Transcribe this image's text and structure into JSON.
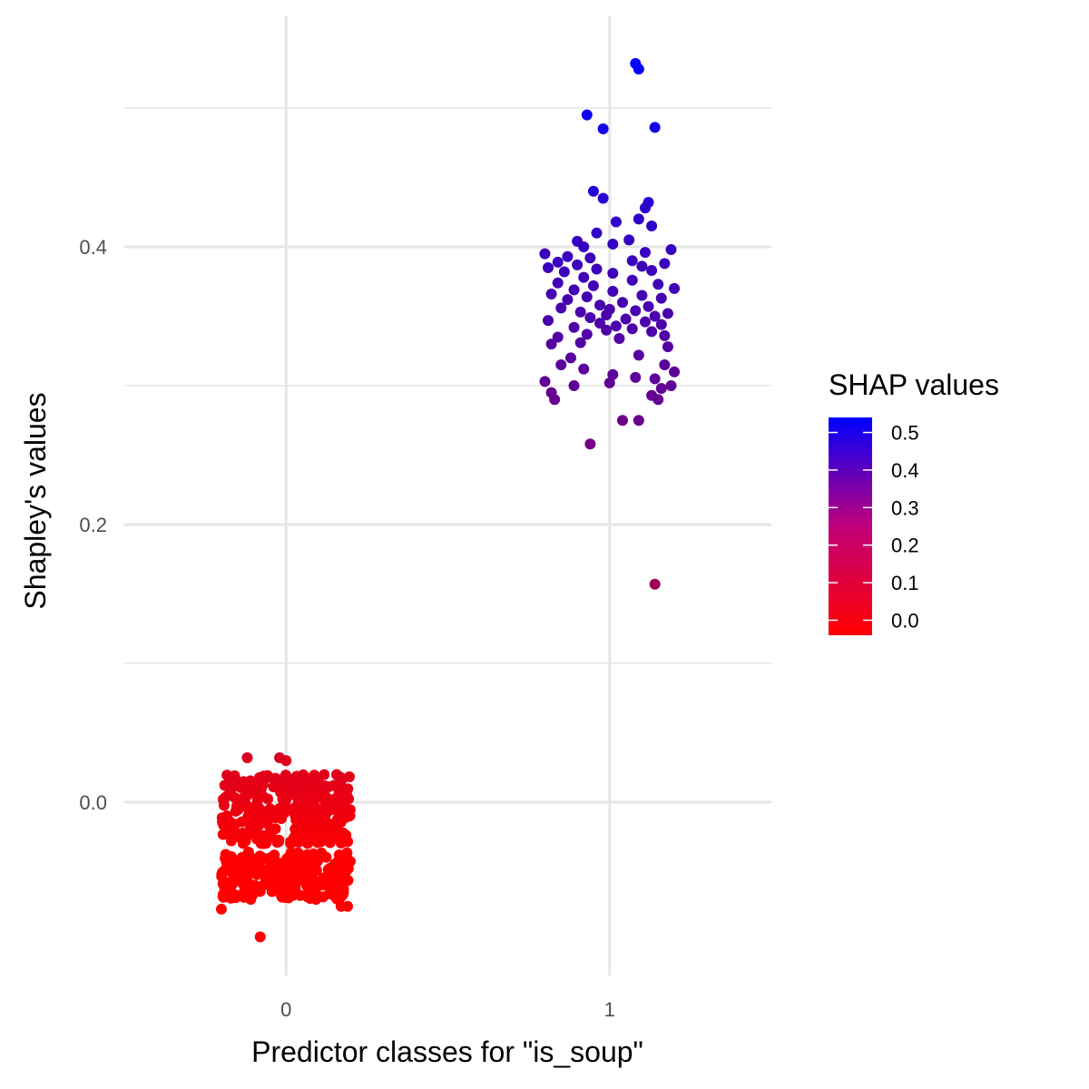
{
  "chart_data": {
    "type": "scatter",
    "xlabel": "Predictor classes for \"is_soup\"",
    "ylabel": "Shapley's values",
    "x_categories": [
      "0",
      "1"
    ],
    "x_tick_labels": [
      "0",
      "1"
    ],
    "y_tick_labels": [
      "0.0",
      "0.2",
      "0.4"
    ],
    "y_ticks": [
      0.0,
      0.2,
      0.4
    ],
    "y_minor_ticks": [
      -0.2,
      0.1,
      0.3,
      0.5
    ],
    "xlim": [
      -0.5,
      1.5
    ],
    "ylim": [
      -0.12,
      0.54
    ],
    "jitter_width": 0.2,
    "grid": true,
    "legend": {
      "title": "SHAP values",
      "placement": "right",
      "tick_labels": [
        "0.5",
        "0.4",
        "0.3",
        "0.2",
        "0.1",
        "0.0"
      ],
      "ticks": [
        0.5,
        0.4,
        0.3,
        0.2,
        0.1,
        0.0
      ],
      "range": [
        -0.04,
        0.54
      ],
      "low_color": "#ff0000",
      "high_color": "#0000ff"
    },
    "class0": {
      "count": 560,
      "main_cluster": {
        "min": -0.03,
        "max": 0.02
      },
      "lower_cluster": {
        "min": -0.07,
        "max": -0.035
      },
      "outliers": [
        {
          "x": -0.12,
          "y": 0.032
        },
        {
          "x": -0.02,
          "y": 0.032
        },
        {
          "x": -0.2,
          "y": -0.077
        },
        {
          "x": -0.08,
          "y": -0.097
        },
        {
          "x": 0.17,
          "y": -0.075
        },
        {
          "x": 0.19,
          "y": -0.075
        },
        {
          "x": 0.0,
          "y": 0.03
        }
      ]
    },
    "class1": {
      "points": [
        {
          "x": 1.08,
          "y": 0.532
        },
        {
          "x": 1.09,
          "y": 0.528
        },
        {
          "x": 0.93,
          "y": 0.495
        },
        {
          "x": 0.98,
          "y": 0.485
        },
        {
          "x": 1.14,
          "y": 0.486
        },
        {
          "x": 0.95,
          "y": 0.44
        },
        {
          "x": 0.98,
          "y": 0.435
        },
        {
          "x": 1.12,
          "y": 0.432
        },
        {
          "x": 1.11,
          "y": 0.428
        },
        {
          "x": 1.09,
          "y": 0.42
        },
        {
          "x": 1.02,
          "y": 0.418
        },
        {
          "x": 1.13,
          "y": 0.415
        },
        {
          "x": 0.96,
          "y": 0.41
        },
        {
          "x": 1.06,
          "y": 0.405
        },
        {
          "x": 0.9,
          "y": 0.404
        },
        {
          "x": 1.01,
          "y": 0.402
        },
        {
          "x": 0.92,
          "y": 0.4
        },
        {
          "x": 1.19,
          "y": 0.398
        },
        {
          "x": 1.11,
          "y": 0.396
        },
        {
          "x": 0.8,
          "y": 0.395
        },
        {
          "x": 0.87,
          "y": 0.393
        },
        {
          "x": 0.94,
          "y": 0.392
        },
        {
          "x": 1.07,
          "y": 0.39
        },
        {
          "x": 0.84,
          "y": 0.389
        },
        {
          "x": 1.17,
          "y": 0.388
        },
        {
          "x": 0.9,
          "y": 0.387
        },
        {
          "x": 1.1,
          "y": 0.386
        },
        {
          "x": 0.81,
          "y": 0.385
        },
        {
          "x": 0.96,
          "y": 0.384
        },
        {
          "x": 1.13,
          "y": 0.383
        },
        {
          "x": 0.86,
          "y": 0.382
        },
        {
          "x": 1.01,
          "y": 0.381
        },
        {
          "x": 0.92,
          "y": 0.378
        },
        {
          "x": 1.07,
          "y": 0.376
        },
        {
          "x": 0.84,
          "y": 0.374
        },
        {
          "x": 1.15,
          "y": 0.373
        },
        {
          "x": 0.95,
          "y": 0.372
        },
        {
          "x": 1.2,
          "y": 0.37
        },
        {
          "x": 0.89,
          "y": 0.369
        },
        {
          "x": 1.01,
          "y": 0.368
        },
        {
          "x": 0.82,
          "y": 0.366
        },
        {
          "x": 1.1,
          "y": 0.365
        },
        {
          "x": 0.93,
          "y": 0.364
        },
        {
          "x": 1.16,
          "y": 0.363
        },
        {
          "x": 0.87,
          "y": 0.362
        },
        {
          "x": 1.04,
          "y": 0.36
        },
        {
          "x": 0.97,
          "y": 0.358
        },
        {
          "x": 1.12,
          "y": 0.357
        },
        {
          "x": 0.85,
          "y": 0.356
        },
        {
          "x": 1.0,
          "y": 0.355
        },
        {
          "x": 1.08,
          "y": 0.354
        },
        {
          "x": 0.91,
          "y": 0.353
        },
        {
          "x": 1.18,
          "y": 0.352
        },
        {
          "x": 0.99,
          "y": 0.351
        },
        {
          "x": 1.14,
          "y": 0.35
        },
        {
          "x": 0.94,
          "y": 0.349
        },
        {
          "x": 1.05,
          "y": 0.348
        },
        {
          "x": 0.81,
          "y": 0.347
        },
        {
          "x": 1.11,
          "y": 0.346
        },
        {
          "x": 0.97,
          "y": 0.345
        },
        {
          "x": 1.16,
          "y": 0.344
        },
        {
          "x": 1.02,
          "y": 0.343
        },
        {
          "x": 0.89,
          "y": 0.342
        },
        {
          "x": 1.07,
          "y": 0.341
        },
        {
          "x": 0.99,
          "y": 0.34
        },
        {
          "x": 1.13,
          "y": 0.339
        },
        {
          "x": 0.93,
          "y": 0.337
        },
        {
          "x": 1.17,
          "y": 0.336
        },
        {
          "x": 0.84,
          "y": 0.335
        },
        {
          "x": 1.03,
          "y": 0.334
        },
        {
          "x": 0.91,
          "y": 0.331
        },
        {
          "x": 1.18,
          "y": 0.328
        },
        {
          "x": 0.82,
          "y": 0.33
        },
        {
          "x": 1.09,
          "y": 0.322
        },
        {
          "x": 0.88,
          "y": 0.32
        },
        {
          "x": 0.85,
          "y": 0.315
        },
        {
          "x": 1.17,
          "y": 0.315
        },
        {
          "x": 0.92,
          "y": 0.312
        },
        {
          "x": 1.2,
          "y": 0.31
        },
        {
          "x": 1.01,
          "y": 0.308
        },
        {
          "x": 1.08,
          "y": 0.306
        },
        {
          "x": 1.14,
          "y": 0.305
        },
        {
          "x": 0.8,
          "y": 0.303
        },
        {
          "x": 1.0,
          "y": 0.302
        },
        {
          "x": 1.19,
          "y": 0.3
        },
        {
          "x": 0.89,
          "y": 0.3
        },
        {
          "x": 1.16,
          "y": 0.298
        },
        {
          "x": 0.82,
          "y": 0.295
        },
        {
          "x": 1.13,
          "y": 0.293
        },
        {
          "x": 0.83,
          "y": 0.29
        },
        {
          "x": 1.15,
          "y": 0.29
        },
        {
          "x": 1.04,
          "y": 0.275
        },
        {
          "x": 1.09,
          "y": 0.275
        },
        {
          "x": 0.94,
          "y": 0.258
        },
        {
          "x": 1.14,
          "y": 0.157
        }
      ]
    }
  }
}
